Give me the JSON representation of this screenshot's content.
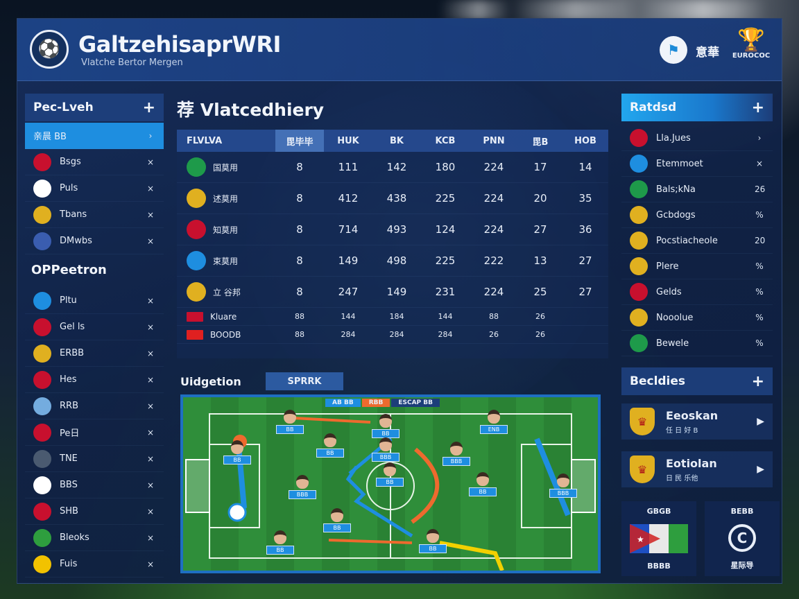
{
  "header": {
    "title": "GaltzehisaprWRI",
    "subtitle": "Vlatche Bertor Mergen",
    "lang": "意華",
    "trophy_caption": "EUROCOC"
  },
  "left": {
    "top_title": "Pec-Lveh",
    "top_items": [
      {
        "label": "亲晨 BB",
        "active": true,
        "flag": "",
        "color": "#1e8ee0",
        "mark": "›"
      },
      {
        "label": "Bsgs",
        "flag": "gb-flag-icon",
        "color": "#c8102e",
        "mark": "×"
      },
      {
        "label": "Puls",
        "flag": "th-flag-icon",
        "color": "#ffffff",
        "mark": "×"
      },
      {
        "label": "Tbans",
        "flag": "crest-icon",
        "color": "#e0b020",
        "mark": "×"
      },
      {
        "label": "DMwbs",
        "flag": "crest-icon",
        "color": "#3a5db0",
        "mark": "×"
      }
    ],
    "section_title": "OPPeetron",
    "items": [
      {
        "label": "Pltu",
        "flag": "globe-icon",
        "color": "#1e8ee0",
        "mark": "×"
      },
      {
        "label": "Gel ls",
        "flag": "es-flag-icon",
        "color": "#c8102e",
        "mark": "×"
      },
      {
        "label": "ERBB",
        "flag": "crest-icon",
        "color": "#e0b020",
        "mark": "×"
      },
      {
        "label": "Hes",
        "flag": "us-flag-icon",
        "color": "#c8102e",
        "mark": "×"
      },
      {
        "label": "RRB",
        "flag": "ar-flag-icon",
        "color": "#74acdf",
        "mark": "×"
      },
      {
        "label": "Pe日",
        "flag": "th-flag-icon",
        "color": "#c8102e",
        "mark": "×"
      },
      {
        "label": "TNE",
        "flag": "diamond-icon",
        "color": "#4a5a70",
        "mark": "×"
      },
      {
        "label": "BBS",
        "flag": "target-icon",
        "color": "#ffffff",
        "mark": "×"
      },
      {
        "label": "SHB",
        "flag": "cross-flag-icon",
        "color": "#c8102e",
        "mark": "×"
      },
      {
        "label": "Bleoks",
        "flag": "green-flag-icon",
        "color": "#2e9e3e",
        "mark": "×"
      },
      {
        "label": "Fuis",
        "flag": "de-flag-icon",
        "color": "#f2c200",
        "mark": "×"
      }
    ]
  },
  "table": {
    "title": "Vlatcedhiery",
    "title_icon": "荐",
    "columns": [
      "FLVLVA",
      "毘毕毕",
      "HUK",
      "BK",
      "KCB",
      "PNN",
      "毘B",
      "HOB"
    ],
    "rows": [
      {
        "team": "国莫用",
        "crest": "#1e9a4a",
        "values": [
          "8",
          "111",
          "142",
          "180",
          "224",
          "17",
          "14"
        ]
      },
      {
        "team": "述莫用",
        "crest": "#e0b020",
        "values": [
          "8",
          "412",
          "438",
          "225",
          "224",
          "20",
          "35"
        ]
      },
      {
        "team": "知莫用",
        "crest": "#c8102e",
        "values": [
          "8",
          "714",
          "493",
          "124",
          "224",
          "27",
          "36"
        ]
      },
      {
        "team": "束莫用",
        "crest": "#1e8ee0",
        "values": [
          "8",
          "149",
          "498",
          "225",
          "222",
          "13",
          "27"
        ]
      },
      {
        "team": "立 谷邦",
        "crest": "#e0b020",
        "values": [
          "8",
          "247",
          "149",
          "231",
          "224",
          "25",
          "27"
        ]
      }
    ],
    "small_rows": [
      {
        "team": "Kluare",
        "crest": "#c8102e",
        "values": [
          "88",
          "144",
          "184",
          "144",
          "88",
          "26"
        ]
      },
      {
        "team": "BOODB",
        "crest": "#e02020",
        "values": [
          "88",
          "284",
          "284",
          "284",
          "26",
          "26"
        ]
      }
    ]
  },
  "lineup": {
    "title": "Uidgetion",
    "tab": "SPRRK",
    "pitch_tabs": [
      "AB BB",
      "RBB",
      "ESCAP BB"
    ]
  },
  "players": [
    {
      "tag": "BB"
    },
    {
      "tag": "BB"
    },
    {
      "tag": "ENB"
    },
    {
      "tag": "BB"
    },
    {
      "tag": "BBB"
    },
    {
      "tag": "BBB"
    },
    {
      "tag": "BB"
    },
    {
      "tag": "BBB"
    },
    {
      "tag": "BB"
    },
    {
      "tag": "BB"
    },
    {
      "tag": "BBB"
    },
    {
      "tag": "BB"
    },
    {
      "tag": "BB"
    },
    {
      "tag": "BB"
    }
  ],
  "right": {
    "top_title": "Ratdsd",
    "items": [
      {
        "label": "Lla.Jues",
        "color": "#c8102e",
        "mark": "›"
      },
      {
        "label": "Etemmoet",
        "color": "#1e8ee0",
        "mark": "×"
      },
      {
        "label": "Bals;kNa",
        "color": "#1e9a4a",
        "mark": "26"
      },
      {
        "label": "Gcbdogs",
        "color": "#e0b020",
        "mark": "%"
      },
      {
        "label": "Pocstiacheole",
        "color": "#e0b020",
        "mark": "20"
      },
      {
        "label": "Plere",
        "color": "#e0b020",
        "mark": "%"
      },
      {
        "label": "Gelds",
        "color": "#c8102e",
        "mark": "%"
      },
      {
        "label": "Nooolue",
        "color": "#e0b020",
        "mark": "%"
      },
      {
        "label": "Bewele",
        "color": "#1e9a4a",
        "mark": "%"
      }
    ],
    "section_title": "Becldies",
    "promos": [
      {
        "title": "Eeoskan",
        "sub": "任 日 好 B"
      },
      {
        "title": "Eotiolan",
        "sub": "日 民 乐他"
      }
    ],
    "cards": [
      {
        "top": "GBGB",
        "bottom": "BBBB"
      },
      {
        "top": "BEBB",
        "bottom": "星际导"
      }
    ]
  }
}
